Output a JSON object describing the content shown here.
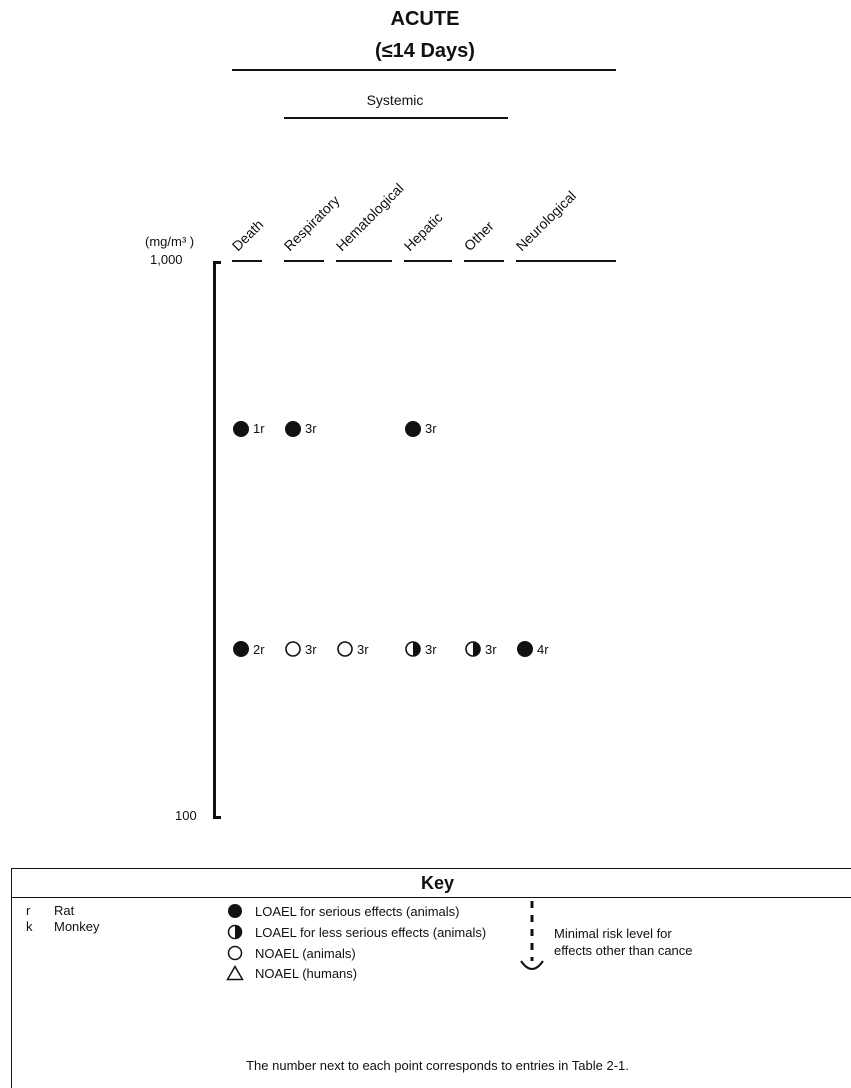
{
  "header": {
    "title": "ACUTE",
    "subtitle": "(≤14 Days)",
    "group_label": "Systemic"
  },
  "chart_data": {
    "type": "scatter",
    "y_unit": "(mg/m³ )",
    "y_scale": "log",
    "ylim": [
      100,
      1000
    ],
    "y_ticks": [
      "1,000",
      "100"
    ],
    "categories": [
      "Death",
      "Respiratory",
      "Hematological",
      "Hepatic",
      "Other",
      "Neurological"
    ],
    "points": [
      {
        "category": "Death",
        "value": 500,
        "symbol": "filled-circle",
        "label": "1r"
      },
      {
        "category": "Respiratory",
        "value": 500,
        "symbol": "filled-circle",
        "label": "3r"
      },
      {
        "category": "Hepatic",
        "value": 500,
        "symbol": "filled-circle",
        "label": "3r"
      },
      {
        "category": "Death",
        "value": 200,
        "symbol": "filled-circle",
        "label": "2r"
      },
      {
        "category": "Respiratory",
        "value": 200,
        "symbol": "open-circle",
        "label": "3r"
      },
      {
        "category": "Hematological",
        "value": 200,
        "symbol": "open-circle",
        "label": "3r"
      },
      {
        "category": "Hepatic",
        "value": 200,
        "symbol": "half-circle",
        "label": "3r"
      },
      {
        "category": "Other",
        "value": 200,
        "symbol": "half-circle",
        "label": "3r"
      },
      {
        "category": "Neurological",
        "value": 200,
        "symbol": "filled-circle",
        "label": "4r"
      }
    ]
  },
  "key": {
    "title": "Key",
    "species": [
      {
        "abbr": "r",
        "name": "Rat"
      },
      {
        "abbr": "k",
        "name": "Monkey"
      }
    ],
    "symbols": [
      {
        "symbol": "filled-circle",
        "label": "LOAEL for serious effects (animals)"
      },
      {
        "symbol": "half-circle",
        "label": "LOAEL for less serious effects (animals)"
      },
      {
        "symbol": "open-circle",
        "label": "NOAEL (animals)"
      },
      {
        "symbol": "triangle",
        "label": "NOAEL (humans)"
      }
    ],
    "mrl_line1": "Minimal risk level for",
    "mrl_line2": "effects other than cance",
    "footnote": "The number next to each point corresponds to entries in Table 2-1."
  }
}
